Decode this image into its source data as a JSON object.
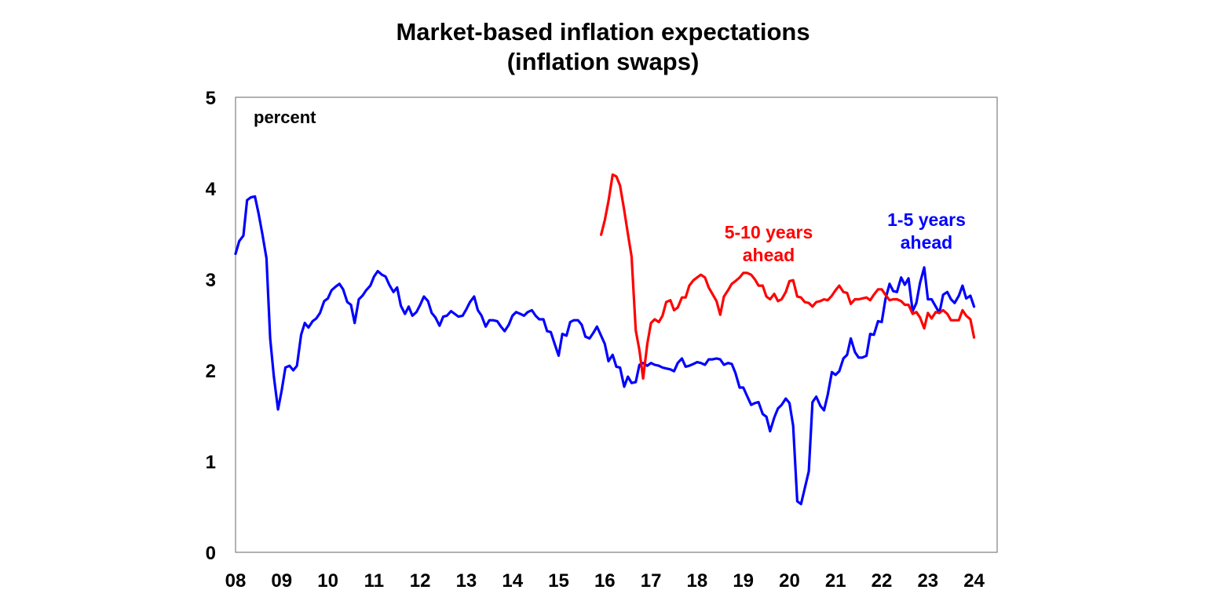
{
  "chart_data": {
    "type": "line",
    "title": "Market-based inflation expectations",
    "subtitle": "(inflation swaps)",
    "unit_label": "percent",
    "xlabel": "",
    "ylabel": "",
    "x_tick_labels": [
      "08",
      "09",
      "10",
      "11",
      "12",
      "13",
      "14",
      "15",
      "16",
      "17",
      "18",
      "19",
      "20",
      "21",
      "22",
      "23",
      "24"
    ],
    "x_ticks": [
      2008,
      2009,
      2010,
      2011,
      2012,
      2013,
      2014,
      2015,
      2016,
      2017,
      2018,
      2019,
      2020,
      2021,
      2022,
      2023,
      2024
    ],
    "xlim": [
      2008,
      2024.5
    ],
    "y_ticks": [
      0,
      1,
      2,
      3,
      4,
      5
    ],
    "ylim": [
      0,
      5
    ],
    "grid": false,
    "colors": {
      "series_1_5": "#0000ff",
      "series_5_10": "#ff0000"
    },
    "annotations": [
      {
        "lines": [
          "5-10 years",
          "ahead"
        ],
        "series": "5-10 years ahead"
      },
      {
        "lines": [
          "1-5 years",
          "ahead"
        ],
        "series": "1-5 years ahead"
      }
    ],
    "series": [
      {
        "name": "1-5 years ahead",
        "color": "#0000ff",
        "x": [
          2008.0,
          2008.08,
          2008.17,
          2008.25,
          2008.33,
          2008.42,
          2008.5,
          2008.58,
          2008.67,
          2008.75,
          2008.83,
          2008.92,
          2009.0,
          2009.08,
          2009.17,
          2009.25,
          2009.33,
          2009.42,
          2009.5,
          2009.58,
          2009.67,
          2009.75,
          2009.83,
          2009.92,
          2010.0,
          2010.08,
          2010.17,
          2010.25,
          2010.33,
          2010.42,
          2010.5,
          2010.58,
          2010.67,
          2010.75,
          2010.83,
          2010.92,
          2011.0,
          2011.08,
          2011.17,
          2011.25,
          2011.33,
          2011.42,
          2011.5,
          2011.58,
          2011.67,
          2011.75,
          2011.83,
          2011.92,
          2012.0,
          2012.08,
          2012.17,
          2012.25,
          2012.33,
          2012.42,
          2012.5,
          2012.58,
          2012.67,
          2012.75,
          2012.83,
          2012.92,
          2013.0,
          2013.08,
          2013.17,
          2013.25,
          2013.33,
          2013.42,
          2013.5,
          2013.58,
          2013.67,
          2013.75,
          2013.83,
          2013.92,
          2014.0,
          2014.08,
          2014.17,
          2014.25,
          2014.33,
          2014.42,
          2014.5,
          2014.58,
          2014.67,
          2014.75,
          2014.83,
          2014.92,
          2015.0,
          2015.08,
          2015.17,
          2015.25,
          2015.33,
          2015.42,
          2015.5,
          2015.58,
          2015.67,
          2015.75,
          2015.83,
          2015.92,
          2016.0,
          2016.08,
          2016.17,
          2016.25,
          2016.33,
          2016.42,
          2016.5,
          2016.58,
          2016.67,
          2016.75,
          2016.83,
          2016.92,
          2017.0,
          2017.08,
          2017.17,
          2017.25,
          2017.33,
          2017.42,
          2017.5,
          2017.58,
          2017.67,
          2017.75,
          2017.83,
          2017.92,
          2018.0,
          2018.08,
          2018.17,
          2018.25,
          2018.33,
          2018.42,
          2018.5,
          2018.58,
          2018.67,
          2018.75,
          2018.83,
          2018.92,
          2019.0,
          2019.08,
          2019.17,
          2019.25,
          2019.33,
          2019.42,
          2019.5,
          2019.58,
          2019.67,
          2019.75,
          2019.83,
          2019.92,
          2020.0,
          2020.08,
          2020.17,
          2020.25,
          2020.33,
          2020.42,
          2020.5,
          2020.58,
          2020.67,
          2020.75,
          2020.83,
          2020.92,
          2021.0,
          2021.08,
          2021.17,
          2021.25,
          2021.33,
          2021.42,
          2021.5,
          2021.58,
          2021.67,
          2021.75,
          2021.83,
          2021.92,
          2022.0,
          2022.08,
          2022.17,
          2022.25,
          2022.33,
          2022.42,
          2022.5,
          2022.58,
          2022.67,
          2022.75,
          2022.83,
          2022.92,
          2023.0,
          2023.08,
          2023.17,
          2023.25,
          2023.33,
          2023.42,
          2023.5,
          2023.58,
          2023.67,
          2023.75,
          2023.83,
          2023.92,
          2024.0
        ],
        "y": [
          3.28,
          3.42,
          3.48,
          3.87,
          3.9,
          3.91,
          3.72,
          3.5,
          3.23,
          2.35,
          1.93,
          1.57,
          1.78,
          2.03,
          2.05,
          2.0,
          2.05,
          2.39,
          2.52,
          2.47,
          2.54,
          2.57,
          2.63,
          2.76,
          2.79,
          2.88,
          2.92,
          2.95,
          2.89,
          2.75,
          2.72,
          2.52,
          2.78,
          2.82,
          2.88,
          2.93,
          3.03,
          3.09,
          3.05,
          3.03,
          2.94,
          2.86,
          2.91,
          2.71,
          2.62,
          2.7,
          2.6,
          2.64,
          2.72,
          2.81,
          2.76,
          2.63,
          2.58,
          2.49,
          2.59,
          2.6,
          2.65,
          2.62,
          2.59,
          2.6,
          2.67,
          2.75,
          2.81,
          2.66,
          2.6,
          2.48,
          2.55,
          2.55,
          2.54,
          2.48,
          2.43,
          2.5,
          2.6,
          2.64,
          2.62,
          2.6,
          2.64,
          2.66,
          2.6,
          2.56,
          2.56,
          2.43,
          2.42,
          2.28,
          2.16,
          2.4,
          2.38,
          2.53,
          2.55,
          2.55,
          2.5,
          2.37,
          2.35,
          2.41,
          2.48,
          2.38,
          2.29,
          2.1,
          2.17,
          2.04,
          2.03,
          1.82,
          1.93,
          1.86,
          1.87,
          2.06,
          2.08,
          2.05,
          2.08,
          2.06,
          2.05,
          2.03,
          2.02,
          2.01,
          1.99,
          2.08,
          2.13,
          2.04,
          2.05,
          2.07,
          2.09,
          2.08,
          2.06,
          2.12,
          2.12,
          2.13,
          2.12,
          2.06,
          2.08,
          2.07,
          1.97,
          1.81,
          1.81,
          1.72,
          1.62,
          1.64,
          1.65,
          1.52,
          1.49,
          1.33,
          1.48,
          1.58,
          1.62,
          1.69,
          1.64,
          1.39,
          0.56,
          0.53,
          0.7,
          0.89,
          1.65,
          1.71,
          1.61,
          1.56,
          1.73,
          1.98,
          1.95,
          1.99,
          2.13,
          2.17,
          2.35,
          2.2,
          2.14,
          2.14,
          2.16,
          2.4,
          2.39,
          2.54,
          2.53,
          2.78,
          2.95,
          2.87,
          2.86,
          3.02,
          2.94,
          3.01,
          2.65,
          2.74,
          2.96,
          3.13,
          2.78,
          2.78,
          2.7,
          2.63,
          2.83,
          2.86,
          2.78,
          2.74,
          2.82,
          2.93,
          2.79,
          2.82,
          2.7
        ]
      },
      {
        "name": "5-10 years ahead",
        "color": "#ff0000",
        "x": [
          2015.92,
          2016.0,
          2016.08,
          2016.17,
          2016.25,
          2016.33,
          2016.42,
          2016.5,
          2016.58,
          2016.67,
          2016.75,
          2016.83,
          2016.92,
          2017.0,
          2017.08,
          2017.17,
          2017.25,
          2017.33,
          2017.42,
          2017.5,
          2017.58,
          2017.67,
          2017.75,
          2017.83,
          2017.92,
          2018.0,
          2018.08,
          2018.17,
          2018.25,
          2018.33,
          2018.42,
          2018.5,
          2018.58,
          2018.67,
          2018.75,
          2018.83,
          2018.92,
          2019.0,
          2019.08,
          2019.17,
          2019.25,
          2019.33,
          2019.42,
          2019.5,
          2019.58,
          2019.67,
          2019.75,
          2019.83,
          2019.92,
          2020.0,
          2020.08,
          2020.17,
          2020.25,
          2020.33,
          2020.42,
          2020.5,
          2020.58,
          2020.67,
          2020.75,
          2020.83,
          2020.92,
          2021.0,
          2021.08,
          2021.17,
          2021.25,
          2021.33,
          2021.42,
          2021.5,
          2021.58,
          2021.67,
          2021.75,
          2021.83,
          2021.92,
          2022.0,
          2022.08,
          2022.17,
          2022.25,
          2022.33,
          2022.42,
          2022.5,
          2022.58,
          2022.67,
          2022.75,
          2022.83,
          2022.92,
          2023.0,
          2023.08,
          2023.17,
          2023.25,
          2023.33,
          2023.42,
          2023.5,
          2023.58,
          2023.67,
          2023.75,
          2023.83,
          2023.92,
          2024.0
        ],
        "y": [
          3.49,
          3.65,
          3.86,
          4.15,
          4.13,
          4.03,
          3.76,
          3.5,
          3.25,
          2.44,
          2.22,
          1.91,
          2.29,
          2.52,
          2.56,
          2.53,
          2.6,
          2.75,
          2.77,
          2.66,
          2.69,
          2.8,
          2.8,
          2.93,
          2.99,
          3.02,
          3.05,
          3.02,
          2.91,
          2.84,
          2.76,
          2.61,
          2.81,
          2.88,
          2.95,
          2.98,
          3.02,
          3.07,
          3.07,
          3.05,
          3.0,
          2.93,
          2.93,
          2.81,
          2.78,
          2.84,
          2.76,
          2.78,
          2.86,
          2.98,
          2.99,
          2.81,
          2.8,
          2.75,
          2.74,
          2.7,
          2.75,
          2.76,
          2.78,
          2.77,
          2.82,
          2.88,
          2.93,
          2.86,
          2.85,
          2.73,
          2.78,
          2.78,
          2.79,
          2.8,
          2.77,
          2.83,
          2.89,
          2.89,
          2.83,
          2.77,
          2.78,
          2.78,
          2.76,
          2.72,
          2.72,
          2.62,
          2.64,
          2.58,
          2.46,
          2.63,
          2.57,
          2.64,
          2.63,
          2.66,
          2.62,
          2.55,
          2.55,
          2.55,
          2.66,
          2.6,
          2.56,
          2.36
        ]
      }
    ]
  }
}
